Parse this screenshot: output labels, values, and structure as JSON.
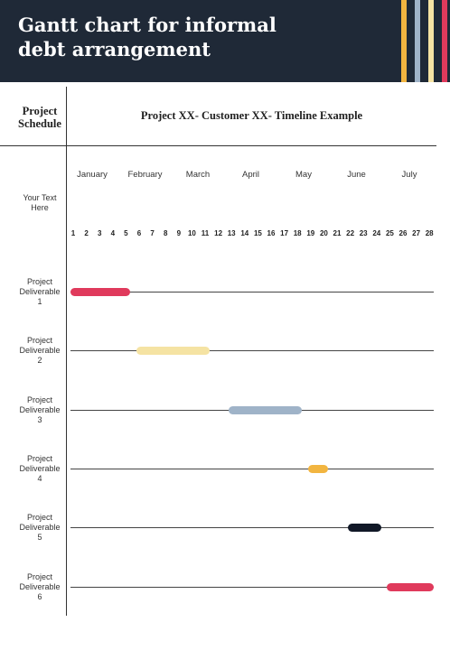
{
  "header": {
    "title": "Gantt chart for informal\ndebt arrangement",
    "stripe_colors": [
      "#f2b540",
      "#9fb3c8",
      "#f5e3a3",
      "#e03a5c"
    ]
  },
  "table": {
    "schedule_label": "Project\nSchedule",
    "timeline_title": "Project XX- Customer XX- Timeline Example",
    "side_note": "Your Text\nHere",
    "months": [
      "January",
      "February",
      "March",
      "April",
      "May",
      "June",
      "July"
    ],
    "days": [
      "1",
      "2",
      "3",
      "4",
      "5",
      "6",
      "7",
      "8",
      "9",
      "10",
      "11",
      "12",
      "13",
      "14",
      "15",
      "16",
      "17",
      "18",
      "19",
      "20",
      "21",
      "22",
      "23",
      "24",
      "25",
      "26",
      "27",
      "28"
    ]
  },
  "chart_data": {
    "type": "gantt",
    "tasks": [
      {
        "name": "Project\nDeliverable\n1",
        "start": 1,
        "end": 5,
        "color": "#e03a5c"
      },
      {
        "name": "Project\nDeliverable\n2",
        "start": 6,
        "end": 11,
        "color": "#f5e3a3"
      },
      {
        "name": "Project\nDeliverable\n3",
        "start": 13,
        "end": 18,
        "color": "#9fb3c8"
      },
      {
        "name": "Project\nDeliverable\n4",
        "start": 19,
        "end": 20,
        "color": "#f2b540"
      },
      {
        "name": "Project\nDeliverable\n5",
        "start": 22,
        "end": 24,
        "color": "#111827"
      },
      {
        "name": "Project\nDeliverable\n6",
        "start": 25,
        "end": 28,
        "color": "#e03a5c"
      }
    ]
  }
}
